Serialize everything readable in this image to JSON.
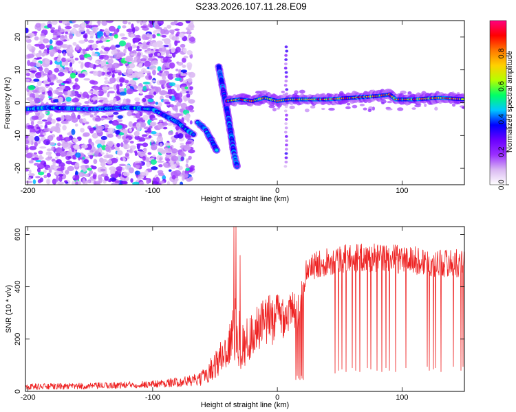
{
  "title": "S233.2026.107.11.28.E09",
  "chart_data": [
    {
      "type": "heatmap",
      "xlabel": "Height of straight line (km)",
      "ylabel": "Frequency (Hz)",
      "xlim": [
        -202,
        150
      ],
      "ylim": [
        -25,
        25
      ],
      "xticks": [
        -200,
        -100,
        0,
        100
      ],
      "yticks": [
        -20,
        -10,
        0,
        10,
        20
      ],
      "colorbar": {
        "label": "Normalized spectral amplitude",
        "range": [
          0,
          1
        ],
        "ticks": [
          "0.0",
          "0.2",
          "0.4",
          "0.6",
          "0.8"
        ],
        "colors": [
          "#ffffff",
          "#d9b8f2",
          "#9b30ff",
          "#6a00ff",
          "#0000ff",
          "#00c8ff",
          "#00ff66",
          "#b4ff00",
          "#ffd000",
          "#ff7800",
          "#ff0000",
          "#ff007f"
        ]
      },
      "features": [
        {
          "name": "trace-left",
          "points": [
            [
              -202,
              -2
            ],
            [
              -185,
              -1.5
            ],
            [
              -150,
              -2
            ],
            [
              -120,
              -1.5
            ],
            [
              -100,
              -2
            ],
            [
              -90,
              -4
            ],
            [
              -80,
              -6
            ],
            [
              -72,
              -8.5
            ],
            [
              -66,
              -10
            ]
          ],
          "amplitude": 0.45
        },
        {
          "name": "trace-falling",
          "points": [
            [
              -64,
              -6
            ],
            [
              -58,
              -8
            ],
            [
              -52,
              -12
            ],
            [
              -48,
              -15
            ]
          ],
          "amplitude": 0.4
        },
        {
          "name": "trace-branch",
          "points": [
            [
              -47,
              11
            ],
            [
              -44,
              5
            ],
            [
              -40,
              -3
            ],
            [
              -37,
              -10
            ],
            [
              -35,
              -15
            ],
            [
              -32,
              -20
            ]
          ],
          "amplitude": 0.35
        },
        {
          "name": "trace-main",
          "points": [
            [
              -40,
              0.5
            ],
            [
              -30,
              1
            ],
            [
              -20,
              0.5
            ],
            [
              -10,
              1.5
            ],
            [
              0,
              0.5
            ],
            [
              10,
              1
            ],
            [
              20,
              1
            ],
            [
              40,
              1
            ],
            [
              60,
              1.5
            ],
            [
              80,
              2
            ],
            [
              90,
              2.5
            ],
            [
              95,
              1
            ],
            [
              110,
              1
            ],
            [
              130,
              1.5
            ],
            [
              150,
              1
            ]
          ],
          "amplitude": 0.95
        },
        {
          "name": "noise-column",
          "points": [
            [
              7,
              17
            ],
            [
              7,
              -20
            ]
          ],
          "amplitude": 0.25
        }
      ],
      "noise_region": {
        "x_from": -202,
        "x_to": -68,
        "amplitude": 0.3
      }
    },
    {
      "type": "line",
      "xlabel": "Height of straight line (km)",
      "ylabel": "SNR (10 * v/v)",
      "xlim": [
        -202,
        150
      ],
      "ylim": [
        0,
        630
      ],
      "xticks": [
        -200,
        -100,
        0,
        100
      ],
      "yticks": [
        0,
        200,
        400,
        600
      ],
      "color": "#ee2222",
      "envelope": {
        "x": [
          -202,
          -150,
          -100,
          -80,
          -62,
          -55,
          -45,
          -38,
          -35,
          -32,
          -28,
          -20,
          -10,
          0,
          10,
          16,
          18,
          22,
          25,
          40,
          60,
          80,
          100,
          120,
          140,
          150
        ],
        "base": [
          18,
          20,
          28,
          35,
          45,
          75,
          130,
          180,
          230,
          230,
          170,
          220,
          260,
          290,
          300,
          310,
          320,
          440,
          470,
          500,
          510,
          510,
          505,
          495,
          490,
          490
        ],
        "jitter": [
          12,
          12,
          14,
          18,
          25,
          40,
          70,
          90,
          120,
          140,
          90,
          90,
          100,
          100,
          80,
          80,
          60,
          50,
          50,
          55,
          55,
          55,
          55,
          55,
          55,
          50
        ]
      },
      "spikes_up": [
        [
          -35,
          640
        ],
        [
          -33,
          640
        ],
        [
          -30,
          520
        ]
      ],
      "dropouts": [
        [
          15,
          45
        ],
        [
          16,
          60
        ],
        [
          17,
          50
        ],
        [
          18,
          45
        ],
        [
          19,
          60
        ],
        [
          20,
          50
        ],
        [
          21,
          45
        ],
        [
          46,
          70
        ],
        [
          49,
          80
        ],
        [
          52,
          85
        ],
        [
          55,
          75
        ],
        [
          60,
          90
        ],
        [
          63,
          80
        ],
        [
          66,
          75
        ],
        [
          72,
          90
        ],
        [
          75,
          85
        ],
        [
          80,
          80
        ],
        [
          84,
          75
        ],
        [
          87,
          90
        ],
        [
          90,
          80
        ],
        [
          95,
          75
        ],
        [
          103,
          90
        ],
        [
          120,
          95
        ],
        [
          122,
          80
        ],
        [
          125,
          85
        ],
        [
          127,
          90
        ],
        [
          131,
          75
        ],
        [
          141,
          95
        ],
        [
          147,
          80
        ],
        [
          149,
          95
        ]
      ]
    }
  ]
}
